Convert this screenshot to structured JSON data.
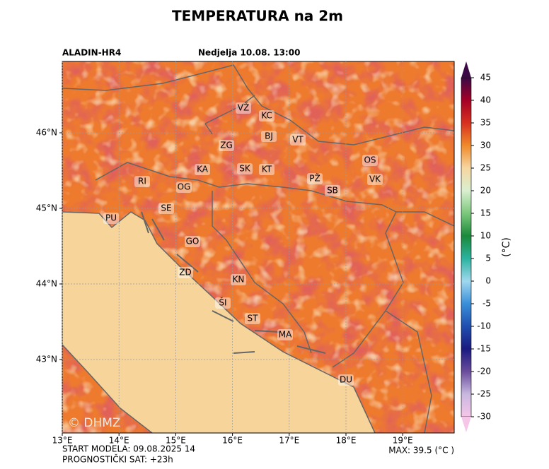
{
  "title": "TEMPERATURA na 2m",
  "model": "ALADIN-HR4",
  "valid_time": "Nedjelja 10.08. 13:00",
  "x_ticks": [
    {
      "value": 13,
      "label": "13°E"
    },
    {
      "value": 14,
      "label": "14°E"
    },
    {
      "value": 15,
      "label": "15°E"
    },
    {
      "value": 16,
      "label": "16°E"
    },
    {
      "value": 17,
      "label": "17°E"
    },
    {
      "value": 18,
      "label": "18°E"
    },
    {
      "value": 19,
      "label": "19°E"
    }
  ],
  "y_ticks": [
    {
      "value": 46,
      "label": "46°N"
    },
    {
      "value": 45,
      "label": "45°N"
    },
    {
      "value": 44,
      "label": "44°N"
    },
    {
      "value": 43,
      "label": "43°N"
    }
  ],
  "cities": [
    "VŽ",
    "KC",
    "BJ",
    "VT",
    "ZG",
    "KA",
    "SK",
    "KT",
    "OS",
    "PŽ",
    "VK",
    "SB",
    "RI",
    "OG",
    "SE",
    "PU",
    "GO",
    "ZD",
    "KN",
    "ŠI",
    "ST",
    "MA",
    "DU"
  ],
  "colorbar": {
    "label": "(°C)",
    "lim": [
      -30,
      45
    ],
    "ticks": [
      45,
      40,
      35,
      30,
      25,
      20,
      15,
      10,
      5,
      0,
      -5,
      -10,
      -15,
      -20,
      -25,
      -30
    ],
    "colors": [
      "#3b0a45",
      "#a50026",
      "#d7301f",
      "#f08a2a",
      "#f6d7a0",
      "#d9efd0",
      "#7cc87c",
      "#1a8a3a",
      "#2bb3a0",
      "#a0d8ef",
      "#3a8fd9",
      "#1f4fb0",
      "#1a1a80",
      "#6a4c9c",
      "#c8b8e0",
      "#f6c6e8"
    ]
  },
  "watermark": "© DHMZ",
  "footer": {
    "start": "START MODELA: 09.08.2025 14",
    "forecast_hour": "PROGNOSTIČKI SAT: +23h",
    "max": "MAX: 39.5 (°C )"
  }
}
